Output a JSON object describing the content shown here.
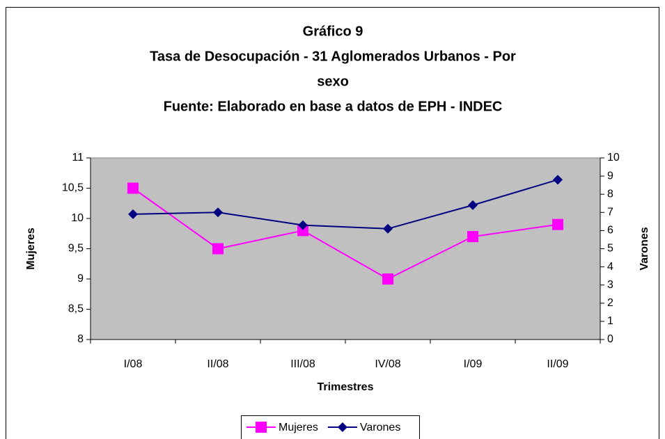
{
  "chart_data": {
    "type": "line",
    "title": [
      "Gráfico 9",
      "Tasa de Desocupación - 31 Aglomerados Urbanos - Por",
      "sexo",
      "Fuente: Elaborado en base a datos de EPH - INDEC"
    ],
    "x_label": "Trimestres",
    "y_label": "Mujeres",
    "y2_label": "Varones",
    "categories": [
      "I/08",
      "II/08",
      "III/08",
      "IV/08",
      "I/09",
      "II/09"
    ],
    "series": [
      {
        "name": "Mujeres",
        "color": "#ff00ff",
        "marker": "square",
        "values": [
          10.5,
          9.5,
          9.8,
          9.0,
          9.7,
          9.9
        ]
      },
      {
        "name": "Varones",
        "color": "#000080",
        "marker": "diamond",
        "axis": "y2",
        "values": [
          6.9,
          7.0,
          6.3,
          6.1,
          7.4,
          8.8
        ]
      }
    ],
    "ylim": [
      8,
      11
    ],
    "yticks": [
      8,
      {
        "value": 8.5,
        "label": "8,5"
      },
      9,
      {
        "value": 9.5,
        "label": "9,5"
      },
      10,
      {
        "value": 10.5,
        "label": "10,5"
      },
      11
    ],
    "y2lim": [
      0,
      10
    ],
    "y2ticks": [
      0,
      1,
      2,
      3,
      4,
      5,
      6,
      7,
      8,
      9,
      10
    ],
    "grid": false,
    "legend": "bottom",
    "plot_background": "#c0c0c0"
  }
}
